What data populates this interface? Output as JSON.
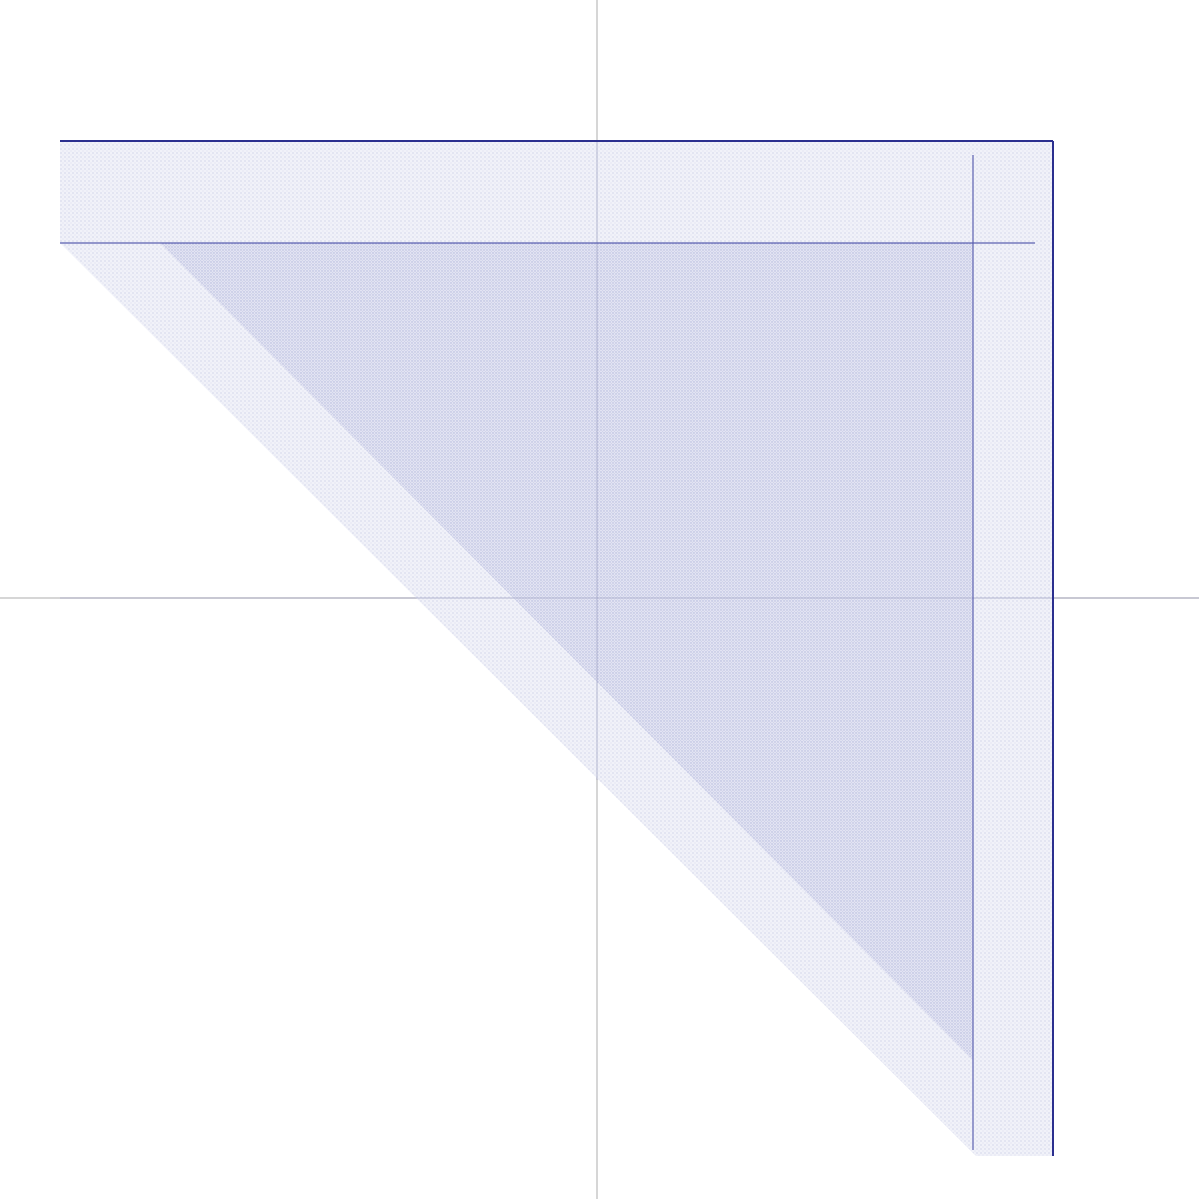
{
  "diagram": {
    "description_visible_text": "",
    "colors": {
      "background": "#ffffff",
      "axis": "#c8c8c8",
      "outer_line": "#2b2f8f",
      "inner_line": "#5a5fb0",
      "fill_light": "#e3e5f3",
      "fill_mid": "#d6d8ee",
      "stipple": "#9da2d0"
    },
    "shapes": [
      {
        "name": "outer-triangle",
        "kind": "right-triangle",
        "shading": "light-stipple"
      },
      {
        "name": "inner-triangle",
        "kind": "right-triangle",
        "shading": "denser-stipple"
      }
    ],
    "axes": {
      "horizontal": true,
      "vertical": true
    }
  }
}
